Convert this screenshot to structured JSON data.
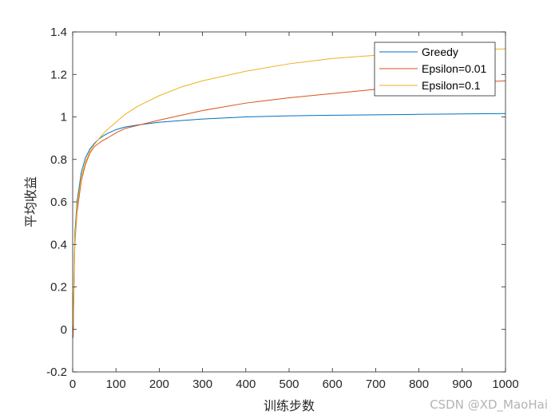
{
  "chart_data": {
    "type": "line",
    "title": "",
    "xlabel": "训练步数",
    "ylabel": "平均收益",
    "xlim": [
      0,
      1000
    ],
    "ylim": [
      -0.2,
      1.4
    ],
    "xticks": [
      0,
      100,
      200,
      300,
      400,
      500,
      600,
      700,
      800,
      900,
      1000
    ],
    "yticks": [
      -0.2,
      0,
      0.2,
      0.4,
      0.6,
      0.8,
      1,
      1.2,
      1.4
    ],
    "grid": false,
    "legend_position": "top-right",
    "series": [
      {
        "name": "Greedy",
        "color": "#0072BD",
        "x": [
          1,
          5,
          10,
          20,
          30,
          40,
          50,
          60,
          70,
          80,
          100,
          120,
          150,
          200,
          300,
          400,
          500,
          600,
          700,
          800,
          900,
          1000
        ],
        "values": [
          0.0,
          0.45,
          0.6,
          0.74,
          0.81,
          0.85,
          0.875,
          0.895,
          0.91,
          0.922,
          0.94,
          0.952,
          0.962,
          0.975,
          0.99,
          1.0,
          1.005,
          1.008,
          1.01,
          1.012,
          1.014,
          1.016
        ]
      },
      {
        "name": "Epsilon=0.01",
        "color": "#D95319",
        "x": [
          1,
          5,
          10,
          20,
          30,
          40,
          50,
          60,
          70,
          80,
          100,
          120,
          150,
          200,
          300,
          400,
          500,
          600,
          700,
          800,
          900,
          1000
        ],
        "values": [
          -0.04,
          0.4,
          0.55,
          0.7,
          0.78,
          0.83,
          0.86,
          0.875,
          0.89,
          0.9,
          0.925,
          0.945,
          0.96,
          0.985,
          1.03,
          1.065,
          1.09,
          1.11,
          1.13,
          1.145,
          1.16,
          1.17
        ]
      },
      {
        "name": "Epsilon=0.1",
        "color": "#EDB120",
        "x": [
          1,
          5,
          10,
          20,
          30,
          40,
          50,
          60,
          70,
          80,
          100,
          120,
          150,
          200,
          250,
          300,
          400,
          500,
          600,
          700,
          800,
          900,
          1000
        ],
        "values": [
          0.02,
          0.42,
          0.58,
          0.72,
          0.79,
          0.84,
          0.87,
          0.895,
          0.92,
          0.94,
          0.975,
          1.01,
          1.05,
          1.1,
          1.14,
          1.17,
          1.215,
          1.25,
          1.275,
          1.29,
          1.305,
          1.315,
          1.32
        ]
      }
    ]
  },
  "watermark": "CSDN @XD_MaoHai"
}
